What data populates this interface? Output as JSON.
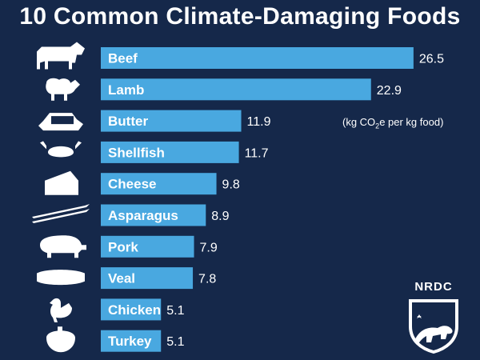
{
  "title": "10 Common Climate-Damaging Foods",
  "unit_note": {
    "prefix": "(kg CO",
    "sub": "2",
    "suffix": "e per kg food)"
  },
  "logo": {
    "text": "NRDC"
  },
  "colors": {
    "background": "#15284a",
    "bar": "#49a8e0",
    "text": "#ffffff"
  },
  "chart_data": {
    "type": "bar",
    "orientation": "horizontal",
    "categories": [
      "Beef",
      "Lamb",
      "Butter",
      "Shellfish",
      "Cheese",
      "Asparagus",
      "Pork",
      "Veal",
      "Chicken",
      "Turkey"
    ],
    "values": [
      26.5,
      22.9,
      11.9,
      11.7,
      9.8,
      8.9,
      7.9,
      7.8,
      5.1,
      5.1
    ],
    "value_labels": [
      "26.5",
      "22.9",
      "11.9",
      "11.7",
      "9.8",
      "8.9",
      "7.9",
      "7.8",
      "5.1",
      "5.1"
    ],
    "icons": [
      "cow-icon",
      "sheep-icon",
      "butter-icon",
      "crab-icon",
      "cheese-icon",
      "asparagus-icon",
      "pig-icon",
      "steak-icon",
      "chicken-icon",
      "turkey-icon"
    ],
    "title": "10 Common Climate-Damaging Foods",
    "xlabel": "",
    "ylabel": "",
    "unit": "kg CO2e per kg food",
    "grid": false,
    "legend": "none"
  }
}
